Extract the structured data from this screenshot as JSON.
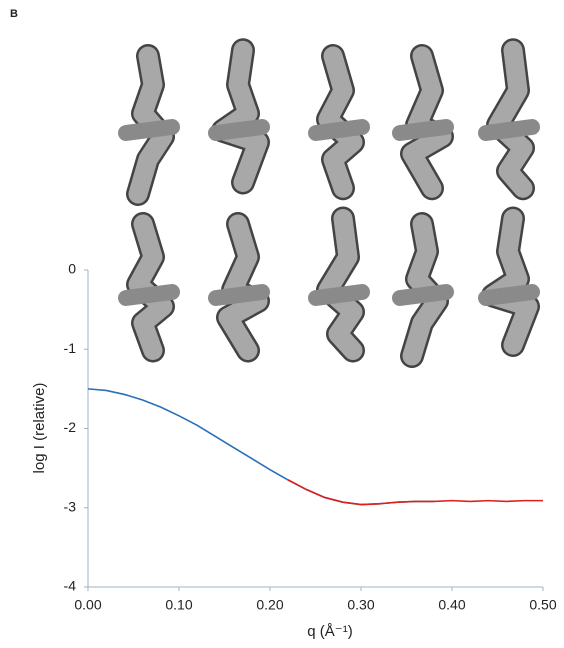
{
  "panel_label": "B",
  "chart_data": {
    "type": "line",
    "xlabel": "q (Å⁻¹)",
    "ylabel": "log I (relative)",
    "x": [
      0,
      0.02,
      0.04,
      0.06,
      0.08,
      0.1,
      0.12,
      0.14,
      0.16,
      0.18,
      0.2,
      0.22,
      0.24,
      0.26,
      0.28,
      0.3,
      0.32,
      0.34,
      0.36,
      0.38,
      0.4,
      0.42,
      0.44,
      0.46,
      0.48,
      0.5
    ],
    "series": [
      {
        "color": "#2a6fb8",
        "values": [
          -1.5,
          -1.52,
          -1.57,
          -1.64,
          -1.73,
          -1.84,
          -1.96,
          -2.1,
          -2.24,
          -2.38,
          -2.52,
          -2.65,
          -2.77,
          -2.87,
          -2.93,
          -2.96,
          -2.95,
          -2.93,
          -2.92,
          -2.92,
          null,
          null,
          null,
          null,
          null,
          null
        ]
      },
      {
        "color": "#e0201b",
        "values": [
          null,
          null,
          null,
          null,
          null,
          null,
          null,
          null,
          null,
          null,
          null,
          -2.65,
          -2.77,
          -2.87,
          -2.93,
          -2.96,
          -2.95,
          -2.93,
          -2.92,
          -2.92,
          -2.91,
          -2.92,
          -2.91,
          -2.92,
          -2.91,
          -2.91
        ]
      }
    ],
    "xlim": [
      0,
      0.5
    ],
    "xticks": [
      {
        "value": 0,
        "label": "0.00"
      },
      {
        "value": 0.1,
        "label": "0.10"
      },
      {
        "value": 0.2,
        "label": "0.20"
      },
      {
        "value": 0.3,
        "label": "0.30"
      },
      {
        "value": 0.4,
        "label": "0.40"
      },
      {
        "value": 0.5,
        "label": "0.50"
      }
    ],
    "ylim": [
      -4,
      0
    ],
    "yticks": [
      0,
      -1,
      -2,
      -3,
      -4
    ]
  }
}
